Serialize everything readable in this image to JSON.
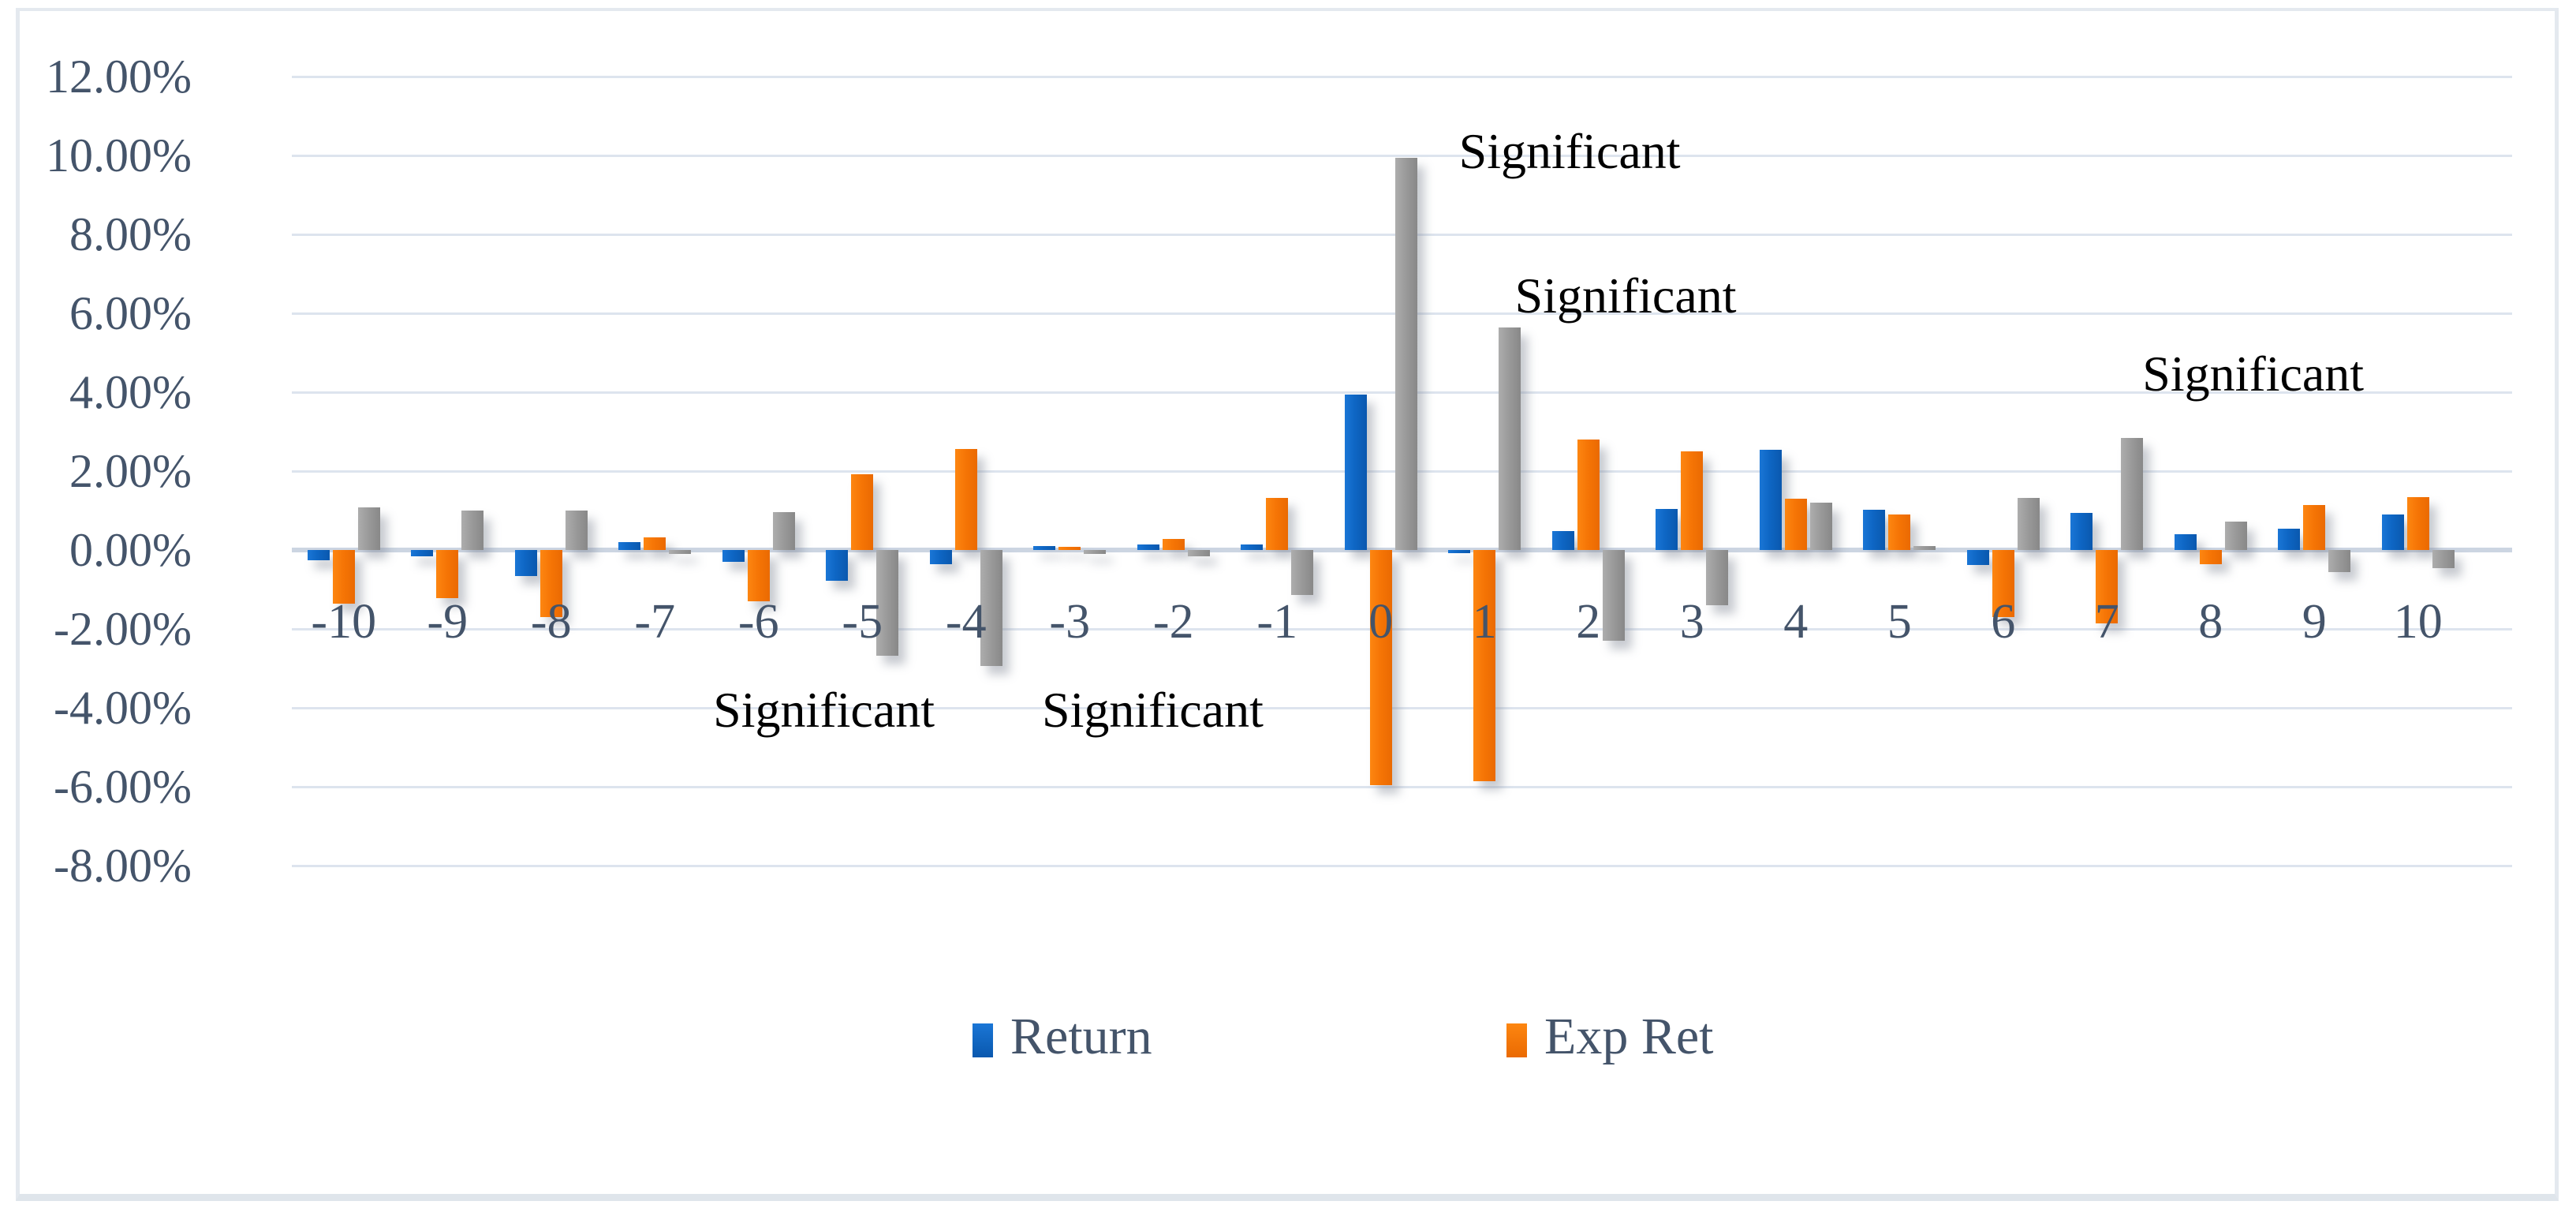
{
  "chart_data": {
    "type": "bar",
    "title": "",
    "categories": [
      -10,
      -9,
      -8,
      -7,
      -6,
      -5,
      -4,
      -3,
      -2,
      -1,
      0,
      1,
      2,
      3,
      4,
      5,
      6,
      7,
      8,
      9,
      10
    ],
    "series": [
      {
        "name": "Return",
        "color": "#0e66c4",
        "values": [
          -0.25,
          -0.15,
          -0.65,
          0.2,
          -0.3,
          -0.78,
          -0.35,
          0.1,
          0.15,
          0.15,
          3.95,
          -0.08,
          0.48,
          1.05,
          2.55,
          1.03,
          -0.37,
          0.95,
          0.4,
          0.55,
          0.9
        ]
      },
      {
        "name": "Exp Ret",
        "color": "#f57405",
        "values": [
          -1.35,
          -1.22,
          -1.7,
          0.32,
          -1.3,
          1.93,
          2.57,
          0.08,
          0.28,
          1.32,
          -5.95,
          -5.85,
          2.8,
          2.5,
          1.3,
          0.9,
          -1.7,
          -1.85,
          -0.35,
          1.15,
          1.35
        ]
      },
      {
        "name": "",
        "color": "#999999",
        "values": [
          1.08,
          1.0,
          1.0,
          -0.1,
          0.97,
          -2.68,
          -2.93,
          -0.1,
          -0.15,
          -1.13,
          9.95,
          5.65,
          -2.3,
          -1.4,
          1.2,
          0.1,
          1.33,
          2.85,
          0.72,
          -0.55,
          -0.45
        ]
      }
    ],
    "ylim": [
      -8,
      12
    ],
    "ytick_step": 2,
    "ytick_format": "0.00%",
    "grid": true,
    "legend_position": "bottom",
    "legend_entries": [
      "Return",
      "Exp Ret"
    ],
    "annotations": [
      {
        "text": "Significant",
        "x": 1.82,
        "y": 10.1
      },
      {
        "text": "Significant",
        "x": 2.36,
        "y": 6.44
      },
      {
        "text": "Significant",
        "x": 8.41,
        "y": 4.46
      },
      {
        "text": "Significant",
        "x": -5.37,
        "y": -4.06
      },
      {
        "text": "Significant",
        "x": -2.2,
        "y": -4.06
      }
    ]
  },
  "legend": {
    "items": [
      {
        "label": "Return",
        "color": "#0e66c4"
      },
      {
        "label": "Exp Ret",
        "color": "#f57405"
      }
    ]
  }
}
